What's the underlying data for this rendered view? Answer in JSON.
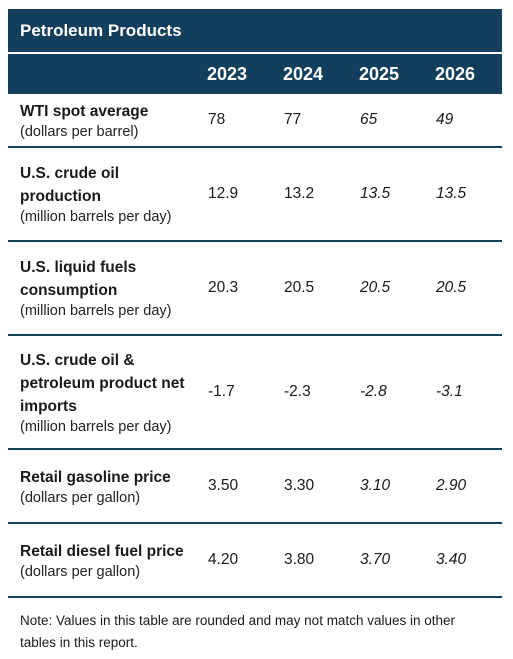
{
  "table": {
    "title": "Petroleum Products",
    "years": [
      "2023",
      "2024",
      "2025",
      "2026"
    ],
    "rows": [
      {
        "name": "WTI spot average",
        "unit": "(dollars per barrel)",
        "values": [
          "78",
          "77",
          "65",
          "49"
        ]
      },
      {
        "name": "U.S. crude oil production",
        "unit": "(million barrels per day)",
        "values": [
          "12.9",
          "13.2",
          "13.5",
          "13.5"
        ]
      },
      {
        "name": "U.S. liquid fuels consumption",
        "unit": "(million barrels per day)",
        "values": [
          "20.3",
          "20.5",
          "20.5",
          "20.5"
        ]
      },
      {
        "name": "U.S. crude oil & petroleum product net imports",
        "unit": "(million barrels per day)",
        "values": [
          "-1.7",
          "-2.3",
          "-2.8",
          "-3.1"
        ]
      },
      {
        "name": "Retail gasoline price",
        "unit": "(dollars per gallon)",
        "values": [
          "3.50",
          "3.30",
          "3.10",
          "2.90"
        ]
      },
      {
        "name": "Retail diesel fuel price",
        "unit": "(dollars per gallon)",
        "values": [
          "4.20",
          "3.80",
          "3.70",
          "3.40"
        ]
      }
    ],
    "forecast_columns": [
      2,
      3
    ],
    "header_color": "#133f5c"
  },
  "note": "Note: Values in this table are rounded and may not match values in other tables in this report."
}
